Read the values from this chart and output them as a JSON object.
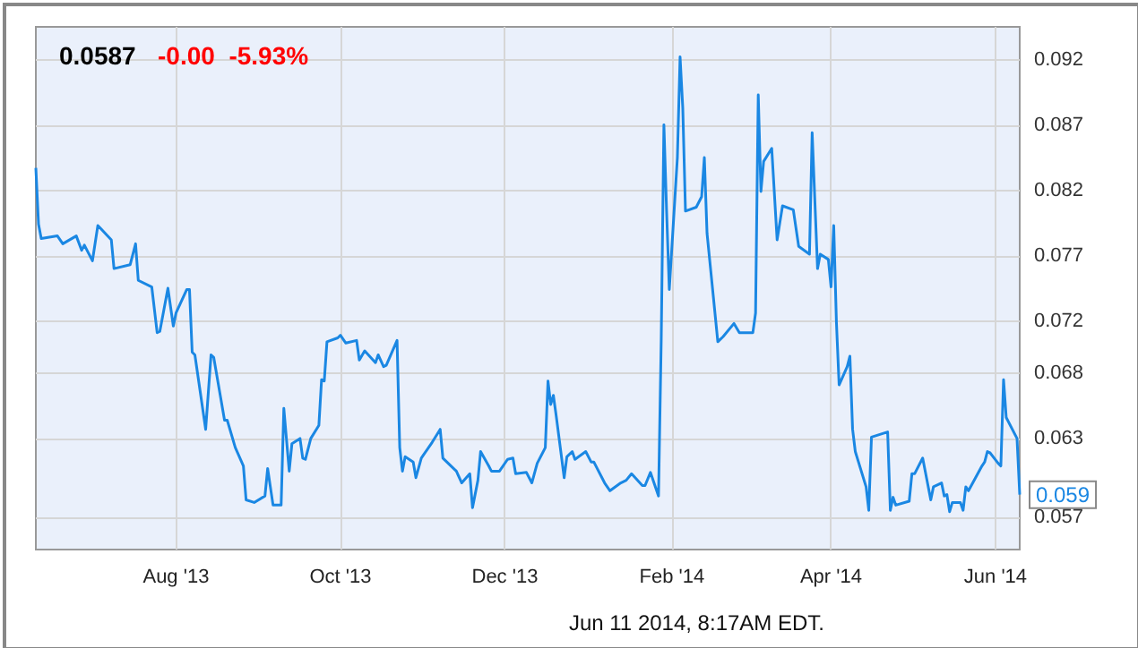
{
  "chart_data": {
    "type": "line",
    "title": "0.0587",
    "subtitle": "-0.00  -5.93%",
    "annotations": [
      {
        "text": "0.059",
        "x": "2014-06-10",
        "y": 0.0587
      },
      "Jun 11 2014, 8:17AM EDT."
    ],
    "x": [
      "2013-06-10",
      "2013-06-11",
      "2013-06-12",
      "2013-06-18",
      "2013-06-20",
      "2013-06-25",
      "2013-06-27",
      "2013-06-28",
      "2013-07-01",
      "2013-07-03",
      "2013-07-08",
      "2013-07-09",
      "2013-07-15",
      "2013-07-17",
      "2013-07-18",
      "2013-07-23",
      "2013-07-25",
      "2013-07-26",
      "2013-07-29",
      "2013-07-31",
      "2013-08-01",
      "2013-08-05",
      "2013-08-06",
      "2013-08-07",
      "2013-08-08",
      "2013-08-12",
      "2013-08-14",
      "2013-08-15",
      "2013-08-19",
      "2013-08-20",
      "2013-08-23",
      "2013-08-26",
      "2013-08-27",
      "2013-08-30",
      "2013-09-03",
      "2013-09-04",
      "2013-09-06",
      "2013-09-09",
      "2013-09-10",
      "2013-09-12",
      "2013-09-13",
      "2013-09-16",
      "2013-09-17",
      "2013-09-18",
      "2013-09-20",
      "2013-09-23",
      "2013-09-24",
      "2013-09-25",
      "2013-09-26",
      "2013-09-30",
      "2013-10-01",
      "2013-10-03",
      "2013-10-07",
      "2013-10-08",
      "2013-10-10",
      "2013-10-14",
      "2013-10-15",
      "2013-10-17",
      "2013-10-18",
      "2013-10-22",
      "2013-10-23",
      "2013-10-24",
      "2013-10-25",
      "2013-10-28",
      "2013-10-29",
      "2013-10-31",
      "2013-11-04",
      "2013-11-07",
      "2013-11-08",
      "2013-11-11",
      "2013-11-13",
      "2013-11-15",
      "2013-11-18",
      "2013-11-19",
      "2013-11-21",
      "2013-11-22",
      "2013-11-25",
      "2013-11-26",
      "2013-11-29",
      "2013-12-02",
      "2013-12-04",
      "2013-12-05",
      "2013-12-09",
      "2013-12-11",
      "2013-12-13",
      "2013-12-16",
      "2013-12-17",
      "2013-12-18",
      "2013-12-19",
      "2013-12-20",
      "2013-12-23",
      "2013-12-24",
      "2013-12-26",
      "2013-12-27",
      "2013-12-31",
      "2014-01-02",
      "2014-01-03",
      "2014-01-07",
      "2014-01-09",
      "2014-01-13",
      "2014-01-15",
      "2014-01-17",
      "2014-01-21",
      "2014-01-22",
      "2014-01-24",
      "2014-01-27",
      "2014-01-28",
      "2014-01-29",
      "2014-01-30",
      "2014-01-31",
      "2014-02-03",
      "2014-02-04",
      "2014-02-05",
      "2014-02-06",
      "2014-02-10",
      "2014-02-12",
      "2014-02-13",
      "2014-02-14",
      "2014-02-18",
      "2014-02-20",
      "2014-02-24",
      "2014-02-26",
      "2014-03-03",
      "2014-03-04",
      "2014-03-05",
      "2014-03-06",
      "2014-03-07",
      "2014-03-10",
      "2014-03-12",
      "2014-03-14",
      "2014-03-18",
      "2014-03-20",
      "2014-03-24",
      "2014-03-25",
      "2014-03-27",
      "2014-03-28",
      "2014-03-31",
      "2014-04-01",
      "2014-04-02",
      "2014-04-03",
      "2014-04-04",
      "2014-04-07",
      "2014-04-08",
      "2014-04-09",
      "2014-04-10",
      "2014-04-14",
      "2014-04-15",
      "2014-04-16",
      "2014-04-22",
      "2014-04-23",
      "2014-04-24",
      "2014-04-25",
      "2014-04-30",
      "2014-05-01",
      "2014-05-02",
      "2014-05-05",
      "2014-05-08",
      "2014-05-09",
      "2014-05-12",
      "2014-05-13",
      "2014-05-14",
      "2014-05-15",
      "2014-05-16",
      "2014-05-19",
      "2014-05-20",
      "2014-05-21",
      "2014-05-22",
      "2014-05-27",
      "2014-05-28",
      "2014-05-29",
      "2014-05-30",
      "2014-06-02",
      "2014-06-03",
      "2014-06-04",
      "2014-06-05",
      "2014-06-09",
      "2014-06-10"
    ],
    "series": [
      {
        "color": "#1a87e3",
        "values": [
          0.0837,
          0.0794,
          0.0783,
          0.0785,
          0.0779,
          0.0785,
          0.0774,
          0.0778,
          0.0766,
          0.0793,
          0.0782,
          0.076,
          0.0763,
          0.0779,
          0.0751,
          0.0746,
          0.0711,
          0.0712,
          0.0745,
          0.0716,
          0.0726,
          0.0744,
          0.0744,
          0.0696,
          0.0694,
          0.0637,
          0.0694,
          0.0692,
          0.0644,
          0.0644,
          0.0623,
          0.0609,
          0.0583,
          0.0581,
          0.0586,
          0.0607,
          0.0579,
          0.0579,
          0.0653,
          0.0605,
          0.0626,
          0.063,
          0.0615,
          0.0614,
          0.063,
          0.064,
          0.0675,
          0.0674,
          0.0704,
          0.0707,
          0.0709,
          0.0703,
          0.0705,
          0.069,
          0.0697,
          0.0688,
          0.0694,
          0.0685,
          0.0686,
          0.0705,
          0.0623,
          0.0605,
          0.0616,
          0.0612,
          0.06,
          0.0615,
          0.0627,
          0.0637,
          0.0615,
          0.0609,
          0.0605,
          0.0596,
          0.0603,
          0.0577,
          0.0598,
          0.062,
          0.0609,
          0.0605,
          0.0605,
          0.0614,
          0.0615,
          0.0603,
          0.0604,
          0.0596,
          0.0611,
          0.0623,
          0.0674,
          0.0656,
          0.0663,
          0.0648,
          0.06,
          0.0616,
          0.062,
          0.0614,
          0.062,
          0.0612,
          0.0612,
          0.0596,
          0.059,
          0.0596,
          0.0598,
          0.0603,
          0.0594,
          0.0594,
          0.0604,
          0.0586,
          0.0705,
          0.087,
          0.0804,
          0.0744,
          0.0845,
          0.0922,
          0.0883,
          0.0804,
          0.0807,
          0.0815,
          0.0845,
          0.0787,
          0.0704,
          0.0708,
          0.0718,
          0.0711,
          0.0711,
          0.0726,
          0.0893,
          0.0819,
          0.0842,
          0.0852,
          0.0782,
          0.0808,
          0.0805,
          0.0777,
          0.0771,
          0.0864,
          0.076,
          0.0771,
          0.0767,
          0.0746,
          0.0793,
          0.0719,
          0.0671,
          0.0685,
          0.0693,
          0.0637,
          0.062,
          0.0593,
          0.0575,
          0.0631,
          0.0635,
          0.0575,
          0.0585,
          0.0579,
          0.0582,
          0.0603,
          0.0603,
          0.0615,
          0.0583,
          0.0593,
          0.0596,
          0.0586,
          0.0587,
          0.0574,
          0.0581,
          0.0581,
          0.0575,
          0.0593,
          0.059,
          0.0609,
          0.0612,
          0.062,
          0.0619,
          0.0611,
          0.0609,
          0.0675,
          0.0646,
          0.063,
          0.0587
        ]
      }
    ],
    "xlim": [
      "2013-06-10",
      "2014-06-10"
    ],
    "xticks": [
      {
        "value": "2013-08-01",
        "label": "Aug '13"
      },
      {
        "value": "2013-10-01",
        "label": "Oct '13"
      },
      {
        "value": "2013-12-01",
        "label": "Dec '13"
      },
      {
        "value": "2014-02-01",
        "label": "Feb '14"
      },
      {
        "value": "2014-04-01",
        "label": "Apr '14"
      },
      {
        "value": "2014-06-01",
        "label": "Jun '14"
      }
    ],
    "ylim": [
      0.0545,
      0.0945
    ],
    "yticks": [
      0.057,
      0.063,
      0.068,
      0.072,
      0.077,
      0.082,
      0.087,
      0.092
    ],
    "grid": true,
    "marker": "none",
    "line_style": "solid"
  }
}
